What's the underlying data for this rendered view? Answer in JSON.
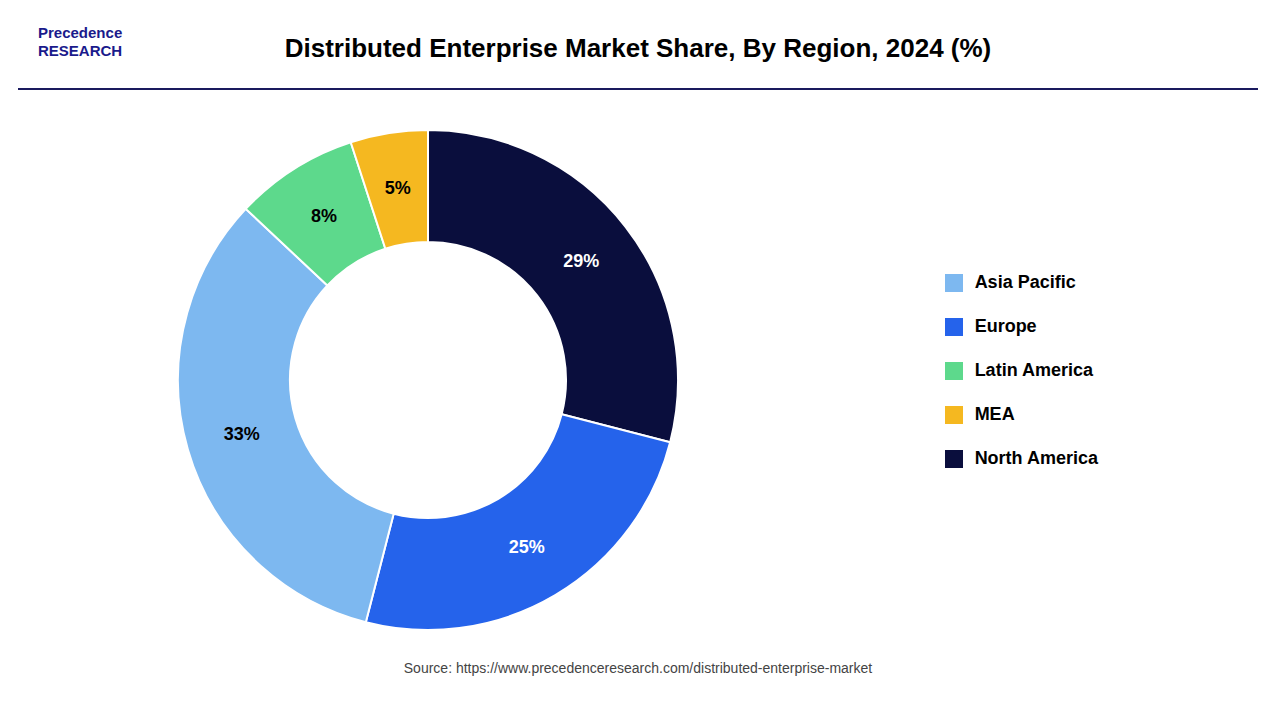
{
  "chart_data": {
    "type": "donut",
    "title": "Distributed Enterprise Market Share, By Region, 2024 (%)",
    "categories": [
      "North America",
      "Europe",
      "Asia Pacific",
      "Latin America",
      "MEA"
    ],
    "values": [
      29,
      25,
      33,
      8,
      5
    ],
    "value_labels": [
      "29%",
      "25%",
      "33%",
      "8%",
      "5%"
    ],
    "colors": [
      "#0a0e3d",
      "#2563eb",
      "#7db8f0",
      "#5dd98c",
      "#f5b820"
    ],
    "data_labels": true,
    "legend": "right",
    "annotations": [
      "Precedence\nRESEARCH",
      "Source: https://www.precedenceresearch.com/distributed-enterprise-market"
    ]
  }
}
